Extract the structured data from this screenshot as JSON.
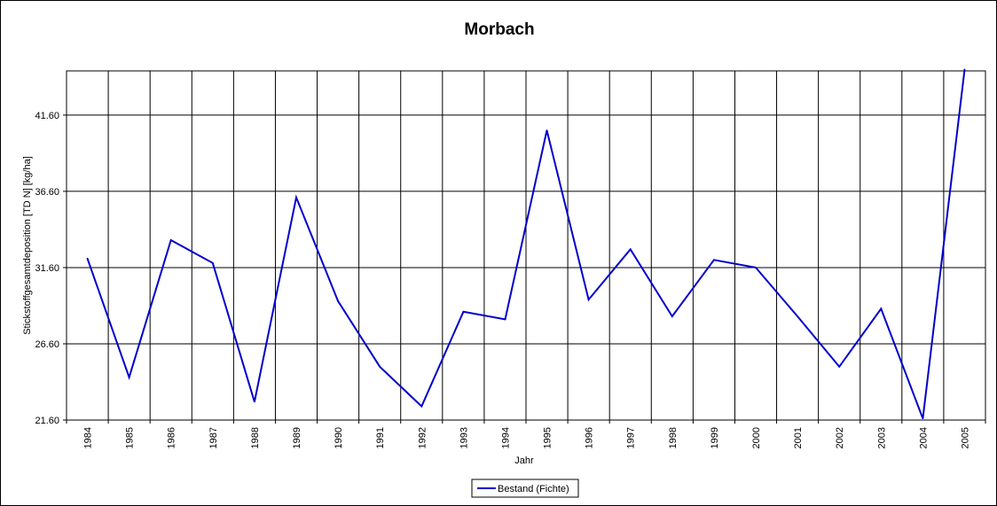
{
  "chart_data": {
    "type": "line",
    "title": "Morbach",
    "xlabel": "Jahr",
    "ylabel": "Stickstoffgesamtdeposition [TD N] [kg/ha]",
    "x": [
      "1984",
      "1985",
      "1986",
      "1987",
      "1988",
      "1989",
      "1990",
      "1991",
      "1992",
      "1993",
      "1994",
      "1995",
      "1996",
      "1997",
      "1998",
      "1999",
      "2000",
      "2001",
      "2002",
      "2003",
      "2004",
      "2005"
    ],
    "yticks": [
      "21.60",
      "26.60",
      "31.60",
      "36.60",
      "41.60"
    ],
    "ylim": [
      21.6,
      44.5
    ],
    "grid": true,
    "legend_position": "bottom-center",
    "series": [
      {
        "name": "Bestand (Fichte)",
        "color": "#0000cc",
        "values": [
          32.2,
          24.4,
          33.4,
          31.9,
          22.8,
          36.2,
          29.4,
          25.1,
          22.5,
          28.7,
          28.2,
          40.6,
          29.5,
          32.8,
          28.4,
          32.1,
          31.6,
          28.4,
          25.1,
          28.9,
          21.7,
          44.6
        ]
      }
    ]
  }
}
